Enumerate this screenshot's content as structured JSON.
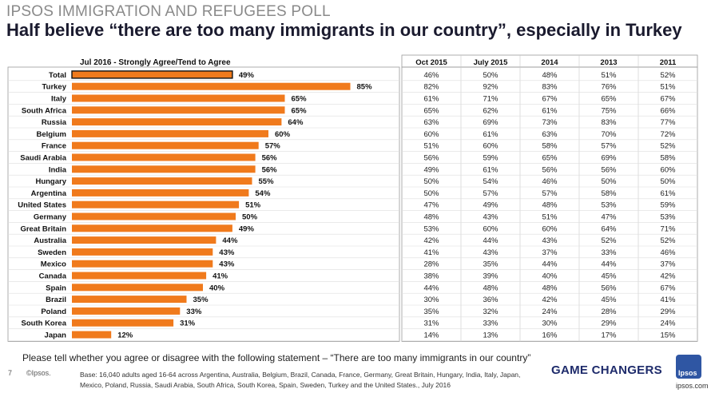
{
  "header": {
    "kicker": "IPSOS IMMIGRATION AND REFUGEES POLL",
    "headline": "Half believe “there are too many immigrants in our country”, especially in Turkey"
  },
  "chart_data": {
    "type": "bar",
    "orientation": "horizontal",
    "title": "Jul 2016 - Strongly Agree/Tend to Agree",
    "categories": [
      "Total",
      "Turkey",
      "Italy",
      "South Africa",
      "Russia",
      "Belgium",
      "France",
      "Saudi Arabia",
      "India",
      "Hungary",
      "Argentina",
      "United States",
      "Germany",
      "Great Britain",
      "Australia",
      "Sweden",
      "Mexico",
      "Canada",
      "Spain",
      "Brazil",
      "Poland",
      "South Korea",
      "Japan"
    ],
    "values": [
      49,
      85,
      65,
      65,
      64,
      60,
      57,
      56,
      56,
      55,
      54,
      51,
      50,
      49,
      44,
      43,
      43,
      41,
      40,
      35,
      33,
      31,
      12
    ],
    "value_labels": [
      "49%",
      "85%",
      "65%",
      "65%",
      "64%",
      "60%",
      "57%",
      "56%",
      "56%",
      "55%",
      "54%",
      "51%",
      "50%",
      "49%",
      "44%",
      "43%",
      "43%",
      "41%",
      "40%",
      "35%",
      "33%",
      "31%",
      "12%"
    ],
    "xlim": [
      0,
      100
    ],
    "highlight_category": "Total",
    "colors": {
      "bar": "#f07a1c",
      "total_bar": "#f07a1c",
      "total_outline": "#111111"
    },
    "table": {
      "columns": [
        "Oct 2015",
        "July 2015",
        "2014",
        "2013",
        "2011"
      ],
      "rows": [
        [
          "46%",
          "50%",
          "48%",
          "51%",
          "52%"
        ],
        [
          "82%",
          "92%",
          "83%",
          "76%",
          "51%"
        ],
        [
          "61%",
          "71%",
          "67%",
          "65%",
          "67%"
        ],
        [
          "65%",
          "62%",
          "61%",
          "75%",
          "66%"
        ],
        [
          "63%",
          "69%",
          "73%",
          "83%",
          "77%"
        ],
        [
          "60%",
          "61%",
          "63%",
          "70%",
          "72%"
        ],
        [
          "51%",
          "60%",
          "58%",
          "57%",
          "52%"
        ],
        [
          "56%",
          "59%",
          "65%",
          "69%",
          "58%"
        ],
        [
          "49%",
          "61%",
          "56%",
          "56%",
          "60%"
        ],
        [
          "50%",
          "54%",
          "46%",
          "50%",
          "50%"
        ],
        [
          "50%",
          "57%",
          "57%",
          "58%",
          "61%"
        ],
        [
          "47%",
          "49%",
          "48%",
          "53%",
          "59%"
        ],
        [
          "48%",
          "43%",
          "51%",
          "47%",
          "53%"
        ],
        [
          "53%",
          "60%",
          "60%",
          "64%",
          "71%"
        ],
        [
          "42%",
          "44%",
          "43%",
          "52%",
          "52%"
        ],
        [
          "41%",
          "43%",
          "37%",
          "33%",
          "46%"
        ],
        [
          "28%",
          "35%",
          "44%",
          "44%",
          "37%"
        ],
        [
          "38%",
          "39%",
          "40%",
          "45%",
          "42%"
        ],
        [
          "44%",
          "48%",
          "48%",
          "56%",
          "67%"
        ],
        [
          "30%",
          "36%",
          "42%",
          "45%",
          "41%"
        ],
        [
          "35%",
          "32%",
          "24%",
          "28%",
          "29%"
        ],
        [
          "31%",
          "33%",
          "30%",
          "29%",
          "24%"
        ],
        [
          "14%",
          "13%",
          "16%",
          "17%",
          "15%"
        ]
      ]
    }
  },
  "footer": {
    "question": "Please tell whether you agree or disagree with the following statement – “There are too many immigrants in our country”",
    "page_number": "7",
    "copyright": "©Ipsos.",
    "base_note": "Base: 16,040 adults aged 16-64 across  Argentina, Australia, Belgium, Brazil, Canada, France, Germany, Great Britain, Hungary, India, Italy, Japan, Mexico, Poland, Russia, Saudi Arabia, South Africa, South Korea, Spain, Sweden, Turkey and the United States., July 2016",
    "brand_tagline": "GAME CHANGERS",
    "logo_text": "Ipsos",
    "website": "ipsos.com"
  }
}
